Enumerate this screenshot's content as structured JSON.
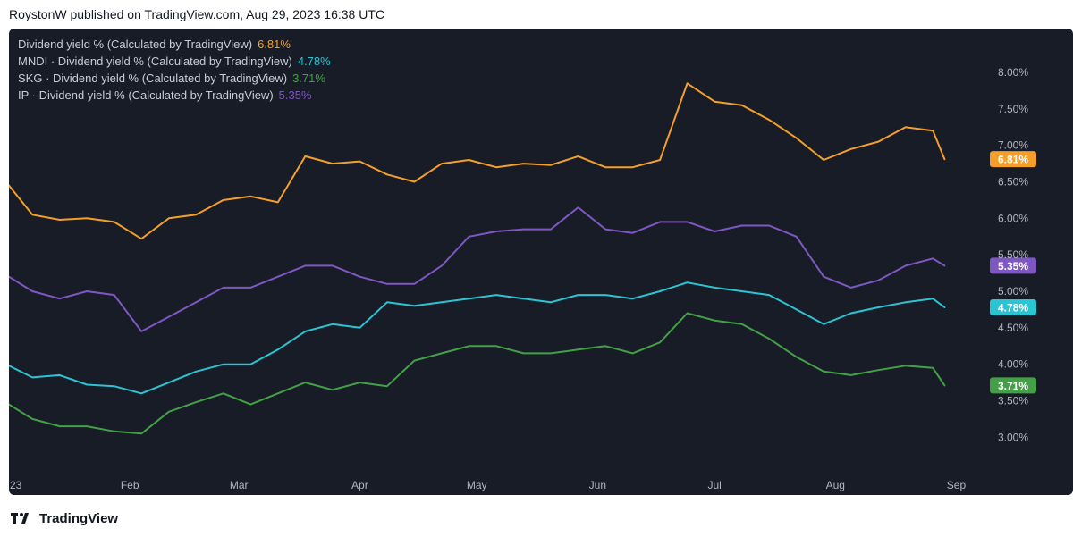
{
  "header": {
    "published_text": "RoystonW published on TradingView.com, Aug 29, 2023 16:38 UTC"
  },
  "footer": {
    "brand_label": "TradingView"
  },
  "colors": {
    "background": "#181c27",
    "orange": "#f59f2a",
    "teal": "#2bc4d2",
    "green": "#43a047",
    "purple": "#7e57c2",
    "axis_text": "#b2b5be"
  },
  "icons": [
    "tradingview-logo-icon"
  ],
  "chart_data": {
    "type": "line",
    "title": "",
    "xlabel": "",
    "ylabel": "",
    "ylim": [
      2.6,
      8.6
    ],
    "x_ticks": [
      "23",
      "Feb",
      "Mar",
      "Apr",
      "May",
      "Jun",
      "Jul",
      "Aug",
      "Sep"
    ],
    "y_ticks": [
      "3.00%",
      "3.50%",
      "4.00%",
      "4.50%",
      "5.00%",
      "5.50%",
      "6.00%",
      "6.50%",
      "7.00%",
      "7.50%",
      "8.00%"
    ],
    "grid": false,
    "legend_position": "top-left",
    "x_dates": [
      "2023-01-01",
      "2023-01-07",
      "2023-01-14",
      "2023-01-21",
      "2023-01-28",
      "2023-02-04",
      "2023-02-11",
      "2023-02-18",
      "2023-02-25",
      "2023-03-04",
      "2023-03-11",
      "2023-03-18",
      "2023-03-25",
      "2023-04-01",
      "2023-04-08",
      "2023-04-15",
      "2023-04-22",
      "2023-04-29",
      "2023-05-06",
      "2023-05-13",
      "2023-05-20",
      "2023-05-27",
      "2023-06-03",
      "2023-06-10",
      "2023-06-17",
      "2023-06-24",
      "2023-07-01",
      "2023-07-08",
      "2023-07-15",
      "2023-07-22",
      "2023-07-29",
      "2023-08-05",
      "2023-08-12",
      "2023-08-19",
      "2023-08-26",
      "2023-08-29"
    ],
    "series": [
      {
        "name": "Dividend yield % (Calculated by TradingView)",
        "value_label": "6.81%",
        "color": "#f59f2a",
        "values": [
          6.45,
          6.05,
          5.98,
          6.0,
          5.95,
          5.72,
          6.0,
          6.05,
          6.25,
          6.3,
          6.22,
          6.85,
          6.75,
          6.78,
          6.6,
          6.5,
          6.75,
          6.8,
          6.7,
          6.75,
          6.73,
          6.85,
          6.7,
          6.7,
          6.8,
          7.85,
          7.6,
          7.55,
          7.35,
          7.1,
          6.8,
          6.95,
          7.05,
          7.25,
          7.2,
          6.81
        ]
      },
      {
        "name": "MNDI · Dividend yield % (Calculated by TradingView)",
        "value_label": "4.78%",
        "color": "#2bc4d2",
        "values": [
          3.98,
          3.82,
          3.85,
          3.72,
          3.7,
          3.6,
          3.75,
          3.9,
          4.0,
          4.0,
          4.2,
          4.45,
          4.55,
          4.5,
          4.85,
          4.8,
          4.85,
          4.9,
          4.95,
          4.9,
          4.85,
          4.95,
          4.95,
          4.9,
          5.0,
          5.12,
          5.05,
          5.0,
          4.95,
          4.75,
          4.55,
          4.7,
          4.78,
          4.85,
          4.9,
          4.78
        ]
      },
      {
        "name": "SKG · Dividend yield % (Calculated by TradingView)",
        "value_label": "3.71%",
        "color": "#43a047",
        "values": [
          3.45,
          3.25,
          3.15,
          3.15,
          3.08,
          3.05,
          3.35,
          3.48,
          3.6,
          3.45,
          3.6,
          3.75,
          3.65,
          3.75,
          3.7,
          4.05,
          4.15,
          4.25,
          4.25,
          4.15,
          4.15,
          4.2,
          4.25,
          4.15,
          4.3,
          4.7,
          4.6,
          4.55,
          4.35,
          4.1,
          3.9,
          3.85,
          3.92,
          3.98,
          3.95,
          3.71
        ]
      },
      {
        "name": "IP · Dividend yield % (Calculated by TradingView)",
        "value_label": "5.35%",
        "color": "#7e57c2",
        "values": [
          5.2,
          5.0,
          4.9,
          5.0,
          4.95,
          4.45,
          4.65,
          4.85,
          5.05,
          5.05,
          5.2,
          5.35,
          5.35,
          5.2,
          5.1,
          5.1,
          5.35,
          5.75,
          5.82,
          5.85,
          5.85,
          6.15,
          5.85,
          5.8,
          5.95,
          5.95,
          5.82,
          5.9,
          5.9,
          5.75,
          5.2,
          5.05,
          5.15,
          5.35,
          5.45,
          5.35
        ]
      }
    ]
  }
}
